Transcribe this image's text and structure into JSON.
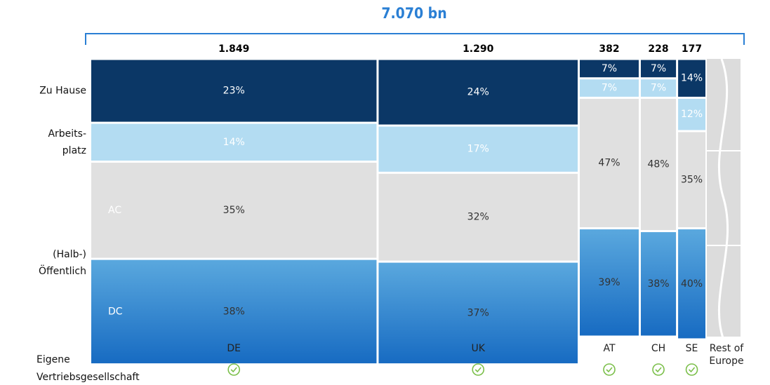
{
  "chart_data": {
    "type": "marimekko",
    "title": "7.070 bn",
    "categories": [
      "DE",
      "UK",
      "AT",
      "CH",
      "SE",
      "Rest of Europe"
    ],
    "widths": [
      {
        "value": 1849,
        "label": "1.849"
      },
      {
        "value": 1290,
        "label": "1.290"
      },
      382,
      228,
      177,
      null
    ],
    "series": [
      {
        "name_lines": [
          "Zu Hause"
        ],
        "color": "#0b3766",
        "label_color": "#ffffff",
        "values": [
          23,
          24,
          7,
          7,
          14,
          null
        ],
        "value_labels": [
          "23%",
          "24%",
          "7%",
          "7%",
          "14%",
          null
        ]
      },
      {
        "name_lines": [
          "Arbeits-",
          "platz"
        ],
        "color": "#b3dcf2",
        "label_color": "#ffffff",
        "values": [
          14,
          17,
          7,
          7,
          12,
          null
        ],
        "value_labels": [
          "14%",
          "17%",
          "7%",
          "7%",
          "12%",
          null
        ]
      },
      {
        "name": "AC",
        "color": "#e0e0e0",
        "label_color": "#333333",
        "values": [
          35,
          32,
          47,
          48,
          35,
          null
        ],
        "value_labels": [
          "35%",
          "32%",
          "47%",
          "48%",
          "35%",
          null
        ]
      },
      {
        "name": "DC",
        "color": "#3f8fd6",
        "gradient": [
          "#5aa8de",
          "#176bc2"
        ],
        "label_color": "#333333",
        "values": [
          38,
          37,
          39,
          38,
          40,
          null
        ],
        "value_labels": [
          "38%",
          "37%",
          "39%",
          "38%",
          "40%",
          null
        ]
      }
    ],
    "group_label": [
      "(Halb-)",
      "Öffentlich"
    ],
    "own_subsidiary_label": [
      "Eigene",
      "Vertriebsgesellschaft"
    ],
    "own_subsidiary": [
      true,
      true,
      true,
      true,
      true,
      false
    ],
    "check_color": "#7bbf4a",
    "accent_color": "#2a7fd4"
  }
}
